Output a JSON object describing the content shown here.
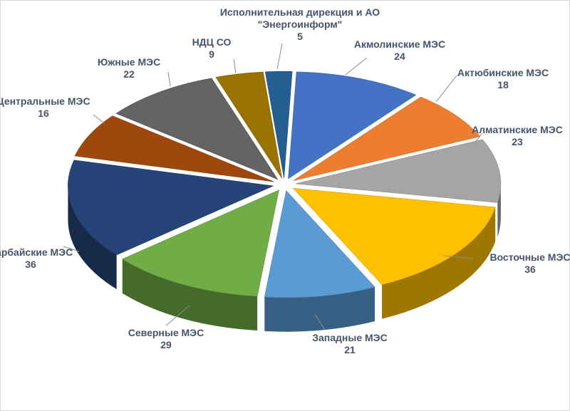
{
  "chart_data": {
    "type": "pie",
    "title": "",
    "categories": [
      "Акмолинские МЭС",
      "Актюбинские МЭС",
      "Алматинские МЭС",
      "Восточные МЭС",
      "Западные МЭС",
      "Северные МЭС",
      "Сарбайские МЭС",
      "Центральные МЭС",
      "Южные МЭС",
      "НДЦ СО",
      "Исполнительная дирекция и АО \"Энергоинформ\""
    ],
    "values": [
      24,
      18,
      23,
      36,
      21,
      29,
      36,
      16,
      22,
      9,
      5
    ],
    "colors": [
      "#4472c4",
      "#ed7d31",
      "#a5a5a5",
      "#ffc000",
      "#5b9bd5",
      "#70ad47",
      "#264478",
      "#9e480e",
      "#636363",
      "#997300",
      "#255e91"
    ],
    "three_d": true,
    "exploded": true,
    "legend": "none",
    "data_labels": "category and value, outside with leader lines"
  }
}
